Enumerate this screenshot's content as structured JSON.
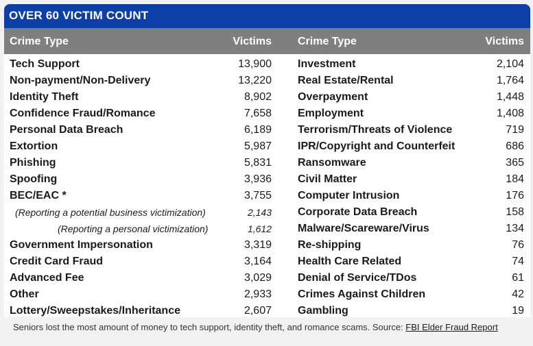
{
  "title": "OVER 60 VICTIM COUNT",
  "headers": {
    "crime_type_left": "Crime Type",
    "victims_left": "Victims",
    "crime_type_right": "Crime Type",
    "victims_right": "Victims"
  },
  "rows": [
    {
      "left_type": "Tech Support",
      "left_victims": "13,900",
      "right_type": "Investment",
      "right_victims": "2,104"
    },
    {
      "left_type": "Non-payment/Non-Delivery",
      "left_victims": "13,220",
      "right_type": "Real Estate/Rental",
      "right_victims": "1,764"
    },
    {
      "left_type": "Identity Theft",
      "left_victims": "8,902",
      "right_type": "Overpayment",
      "right_victims": "1,448"
    },
    {
      "left_type": "Confidence Fraud/Romance",
      "left_victims": "7,658",
      "right_type": "Employment",
      "right_victims": "1,408"
    },
    {
      "left_type": "Personal Data Breach",
      "left_victims": "6,189",
      "right_type": "Terrorism/Threats of Violence",
      "right_victims": "719"
    },
    {
      "left_type": "Extortion",
      "left_victims": "5,987",
      "right_type": "IPR/Copyright and Counterfeit",
      "right_victims": "686"
    },
    {
      "left_type": "Phishing",
      "left_victims": "5,831",
      "right_type": "Ransomware",
      "right_victims": "365"
    },
    {
      "left_type": "Spoofing",
      "left_victims": "3,936",
      "right_type": "Civil Matter",
      "right_victims": "184"
    },
    {
      "left_type": "BEC/EAC *",
      "left_victims": "3,755",
      "right_type": "Computer Intrusion",
      "right_victims": "176"
    },
    {
      "left_type": "(Reporting a potential business victimization)",
      "left_victims": "2,143",
      "right_type": "Corporate Data Breach",
      "right_victims": "158",
      "left_style": "sub1"
    },
    {
      "left_type": "(Reporting a personal victimization)",
      "left_victims": "1,612",
      "right_type": "Malware/Scareware/Virus",
      "right_victims": "134",
      "left_style": "sub2"
    },
    {
      "left_type": "Government Impersonation",
      "left_victims": "3,319",
      "right_type": "Re-shipping",
      "right_victims": "76"
    },
    {
      "left_type": "Credit Card Fraud",
      "left_victims": "3,164",
      "right_type": "Health Care Related",
      "right_victims": "74"
    },
    {
      "left_type": "Advanced Fee",
      "left_victims": "3,029",
      "right_type": "Denial of Service/TDos",
      "right_victims": "61"
    },
    {
      "left_type": "Other",
      "left_victims": "2,933",
      "right_type": "Crimes Against Children",
      "right_victims": "42"
    },
    {
      "left_type": "Lottery/Sweepstakes/Inheritance",
      "left_victims": "2,607",
      "right_type": "Gambling",
      "right_victims": "19"
    }
  ],
  "caption": {
    "text": "Seniors lost the most amount of money to tech support, identity theft, and romance scams. Source: ",
    "link_text": "FBI Elder Fraud Report"
  },
  "colors": {
    "title_bg": "#0d3fa6",
    "header_bg": "#7f7f7f"
  }
}
